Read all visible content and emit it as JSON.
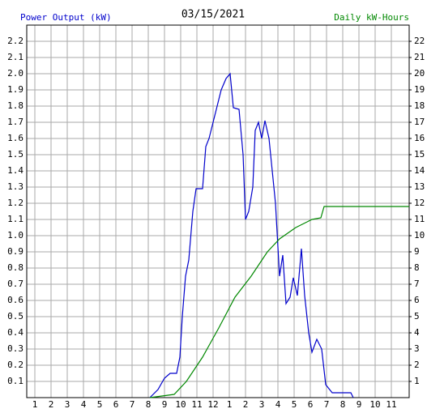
{
  "chart_data": {
    "type": "line",
    "title": "03/15/2021",
    "xlim": [
      0.5,
      24.1
    ],
    "xticks": [
      {
        "value": 1,
        "label": "1"
      },
      {
        "value": 2,
        "label": "2"
      },
      {
        "value": 3,
        "label": "3"
      },
      {
        "value": 4,
        "label": "4"
      },
      {
        "value": 5,
        "label": "5"
      },
      {
        "value": 6,
        "label": "6"
      },
      {
        "value": 7,
        "label": "7"
      },
      {
        "value": 8,
        "label": "8"
      },
      {
        "value": 9,
        "label": "9"
      },
      {
        "value": 10,
        "label": "10"
      },
      {
        "value": 11,
        "label": "11"
      },
      {
        "value": 12,
        "label": "12"
      },
      {
        "value": 13,
        "label": "1"
      },
      {
        "value": 14,
        "label": "2"
      },
      {
        "value": 15,
        "label": "3"
      },
      {
        "value": 16,
        "label": "4"
      },
      {
        "value": 17,
        "label": "5"
      },
      {
        "value": 18,
        "label": "6"
      },
      {
        "value": 19,
        "label": "7"
      },
      {
        "value": 20,
        "label": "8"
      },
      {
        "value": 21,
        "label": "9"
      },
      {
        "value": 22,
        "label": "10"
      },
      {
        "value": 23,
        "label": "11"
      }
    ],
    "ylim": [
      0,
      2.3
    ],
    "yticks": [
      0.1,
      0.2,
      0.3,
      0.4,
      0.5,
      0.6,
      0.7,
      0.8,
      0.9,
      {
        "value": 1,
        "label": "1.0"
      },
      1.1,
      1.2,
      1.3,
      1.4,
      1.5,
      1.6,
      1.7,
      1.8,
      1.9,
      {
        "value": 2,
        "label": "2.0"
      },
      2.1,
      2.2
    ],
    "y2lim": [
      0,
      23
    ],
    "y2ticks": [
      1,
      2,
      3,
      4,
      5,
      6,
      7,
      8,
      9,
      10,
      11,
      12,
      13,
      14,
      15,
      16,
      17,
      18,
      19,
      20,
      21,
      22
    ],
    "grid": true,
    "series": [
      {
        "name": "Power Output (kW)",
        "color": "#0000cc",
        "x": [
          8.1,
          8.6,
          9.0,
          9.35,
          9.75,
          9.95,
          10.1,
          10.3,
          10.5,
          10.75,
          10.95,
          11.35,
          11.55,
          11.75,
          12.0,
          12.25,
          12.5,
          12.8,
          13.05,
          13.25,
          13.6,
          13.85,
          14.0,
          14.2,
          14.45,
          14.6,
          14.8,
          15.0,
          15.2,
          15.45,
          15.65,
          15.85,
          16.1,
          16.3,
          16.5,
          16.75,
          16.95,
          17.2,
          17.45,
          17.65,
          17.9,
          18.1,
          18.4,
          18.7,
          18.95,
          19.35,
          20.5,
          20.65
        ],
        "values": [
          0,
          0.05,
          0.12,
          0.15,
          0.15,
          0.25,
          0.5,
          0.75,
          0.85,
          1.15,
          1.29,
          1.29,
          1.55,
          1.6,
          1.7,
          1.8,
          1.9,
          1.97,
          2.0,
          1.79,
          1.78,
          1.5,
          1.1,
          1.15,
          1.3,
          1.65,
          1.7,
          1.6,
          1.71,
          1.6,
          1.4,
          1.2,
          0.75,
          0.88,
          0.58,
          0.62,
          0.74,
          0.63,
          0.92,
          0.63,
          0.4,
          0.28,
          0.36,
          0.3,
          0.08,
          0.03,
          0.03,
          0
        ]
      },
      {
        "name": "Daily kW-Hours",
        "color": "#008800",
        "axis": "y2",
        "x": [
          8.1,
          9.6,
          10.35,
          11.35,
          12.35,
          13.35,
          14.35,
          15.35,
          16.1,
          17.1,
          18.1,
          18.65,
          18.85,
          24.1
        ],
        "values": [
          0,
          0.2,
          1,
          2.5,
          4.3,
          6.2,
          7.5,
          9,
          9.8,
          10.5,
          11,
          11.1,
          11.8,
          11.8
        ]
      }
    ]
  }
}
